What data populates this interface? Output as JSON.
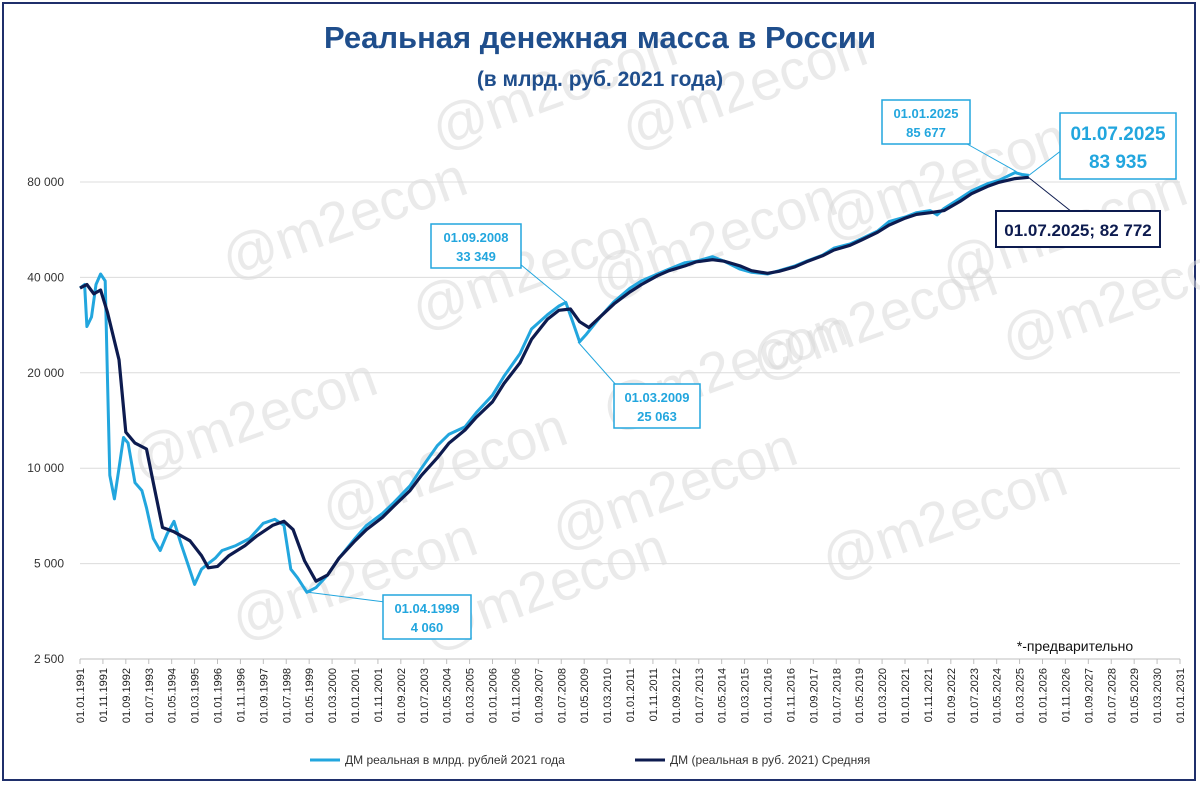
{
  "chart_data": {
    "type": "line",
    "title": "Реальная денежная масса в России",
    "subtitle": "(в млрд. руб. 2021 года)",
    "y_scale": "log",
    "ylim": [
      2500,
      95000
    ],
    "y_ticks": [
      2500,
      5000,
      10000,
      20000,
      40000,
      80000
    ],
    "y_tick_labels": [
      "2 500",
      "5 000",
      "10 000",
      "20 000",
      "40 000",
      "80 000"
    ],
    "x_tick_labels": [
      "01.01.1991",
      "01.11.1991",
      "01.09.1992",
      "01.07.1993",
      "01.05.1994",
      "01.03.1995",
      "01.01.1996",
      "01.11.1996",
      "01.09.1997",
      "01.07.1998",
      "01.05.1999",
      "01.03.2000",
      "01.01.2001",
      "01.11.2001",
      "01.09.2002",
      "01.07.2003",
      "01.05.2004",
      "01.03.2005",
      "01.01.2006",
      "01.11.2006",
      "01.09.2007",
      "01.07.2008",
      "01.05.2009",
      "01.03.2010",
      "01.01.2011",
      "01.11.2011",
      "01.09.2012",
      "01.07.2013",
      "01.05.2014",
      "01.03.2015",
      "01.01.2016",
      "01.11.2016",
      "01.09.2017",
      "01.07.2018",
      "01.05.2019",
      "01.03.2020",
      "01.01.2021",
      "01.11.2021",
      "01.09.2022",
      "01.07.2023",
      "01.05.2024",
      "01.03.2025",
      "01.01.2026",
      "01.11.2026",
      "01.09.2027",
      "01.07.2028",
      "01.05.2029",
      "01.03.2030",
      "01.01.2031"
    ],
    "x_range": [
      "1991-01",
      "2031-01"
    ],
    "grid": "horizontal",
    "legend_position": "bottom",
    "series": [
      {
        "name": "ДМ реальная в млрд. рублей 2021 года",
        "color": "#22a6de",
        "points": [
          [
            "1991-01",
            37000
          ],
          [
            "1991-03",
            38000
          ],
          [
            "1991-04",
            28000
          ],
          [
            "1991-06",
            30000
          ],
          [
            "1991-08",
            38000
          ],
          [
            "1991-10",
            41000
          ],
          [
            "1991-12",
            39000
          ],
          [
            "1992-01",
            19000
          ],
          [
            "1992-02",
            9500
          ],
          [
            "1992-04",
            8000
          ],
          [
            "1992-06",
            10000
          ],
          [
            "1992-08",
            12500
          ],
          [
            "1992-10",
            12000
          ],
          [
            "1993-01",
            9000
          ],
          [
            "1993-04",
            8500
          ],
          [
            "1993-06",
            7500
          ],
          [
            "1993-09",
            6000
          ],
          [
            "1993-12",
            5500
          ],
          [
            "1994-03",
            6200
          ],
          [
            "1994-06",
            6800
          ],
          [
            "1994-09",
            5800
          ],
          [
            "1994-12",
            5000
          ],
          [
            "1995-03",
            4300
          ],
          [
            "1995-06",
            4800
          ],
          [
            "1995-09",
            5000
          ],
          [
            "1995-12",
            5200
          ],
          [
            "1996-03",
            5500
          ],
          [
            "1996-09",
            5700
          ],
          [
            "1997-03",
            6000
          ],
          [
            "1997-09",
            6700
          ],
          [
            "1998-02",
            6900
          ],
          [
            "1998-06",
            6600
          ],
          [
            "1998-09",
            4800
          ],
          [
            "1998-12",
            4500
          ],
          [
            "1999-04",
            4060
          ],
          [
            "1999-08",
            4200
          ],
          [
            "2000-01",
            4600
          ],
          [
            "2000-06",
            5200
          ],
          [
            "2001-01",
            6000
          ],
          [
            "2001-06",
            6600
          ],
          [
            "2002-01",
            7200
          ],
          [
            "2002-06",
            7800
          ],
          [
            "2003-01",
            8800
          ],
          [
            "2003-06",
            10000
          ],
          [
            "2004-01",
            11800
          ],
          [
            "2004-06",
            12800
          ],
          [
            "2005-01",
            13500
          ],
          [
            "2005-06",
            15000
          ],
          [
            "2006-01",
            17000
          ],
          [
            "2006-06",
            19500
          ],
          [
            "2007-01",
            23000
          ],
          [
            "2007-06",
            27500
          ],
          [
            "2008-01",
            30500
          ],
          [
            "2008-06",
            32500
          ],
          [
            "2008-09",
            33349
          ],
          [
            "2008-12",
            29000
          ],
          [
            "2009-03",
            25063
          ],
          [
            "2009-06",
            26500
          ],
          [
            "2009-12",
            30000
          ],
          [
            "2010-06",
            33500
          ],
          [
            "2011-01",
            37000
          ],
          [
            "2011-06",
            39000
          ],
          [
            "2012-01",
            41000
          ],
          [
            "2012-06",
            42500
          ],
          [
            "2013-01",
            44500
          ],
          [
            "2013-06",
            45000
          ],
          [
            "2014-01",
            46500
          ],
          [
            "2014-06",
            45000
          ],
          [
            "2015-01",
            42500
          ],
          [
            "2015-06",
            41500
          ],
          [
            "2016-01",
            41000
          ],
          [
            "2016-06",
            42000
          ],
          [
            "2017-01",
            43500
          ],
          [
            "2017-06",
            45000
          ],
          [
            "2018-01",
            47000
          ],
          [
            "2018-06",
            49500
          ],
          [
            "2019-01",
            51000
          ],
          [
            "2019-06",
            53000
          ],
          [
            "2020-01",
            56000
          ],
          [
            "2020-06",
            60000
          ],
          [
            "2021-01",
            62000
          ],
          [
            "2021-06",
            64000
          ],
          [
            "2021-12",
            65000
          ],
          [
            "2022-03",
            63000
          ],
          [
            "2022-06",
            66000
          ],
          [
            "2023-01",
            71000
          ],
          [
            "2023-06",
            75000
          ],
          [
            "2024-01",
            79000
          ],
          [
            "2024-06",
            81000
          ],
          [
            "2025-01",
            85677
          ],
          [
            "2025-04",
            84500
          ],
          [
            "2025-07",
            83935
          ]
        ]
      },
      {
        "name": "ДМ (реальная в руб. 2021) Средняя",
        "color": "#0d1b4f",
        "points": [
          [
            "1991-01",
            37000
          ],
          [
            "1991-04",
            38000
          ],
          [
            "1991-07",
            35500
          ],
          [
            "1991-10",
            36500
          ],
          [
            "1992-01",
            31000
          ],
          [
            "1992-06",
            22000
          ],
          [
            "1992-09",
            13000
          ],
          [
            "1993-01",
            12000
          ],
          [
            "1993-06",
            11500
          ],
          [
            "1993-09",
            9000
          ],
          [
            "1994-01",
            6500
          ],
          [
            "1994-06",
            6300
          ],
          [
            "1995-01",
            5900
          ],
          [
            "1995-06",
            5300
          ],
          [
            "1995-09",
            4850
          ],
          [
            "1996-01",
            4900
          ],
          [
            "1996-06",
            5300
          ],
          [
            "1997-01",
            5700
          ],
          [
            "1997-06",
            6100
          ],
          [
            "1998-01",
            6600
          ],
          [
            "1998-06",
            6800
          ],
          [
            "1998-10",
            6400
          ],
          [
            "1999-03",
            5100
          ],
          [
            "1999-08",
            4400
          ],
          [
            "2000-01",
            4600
          ],
          [
            "2000-06",
            5200
          ],
          [
            "2001-01",
            5900
          ],
          [
            "2001-06",
            6400
          ],
          [
            "2002-01",
            7000
          ],
          [
            "2002-06",
            7600
          ],
          [
            "2003-01",
            8500
          ],
          [
            "2003-06",
            9500
          ],
          [
            "2004-01",
            10800
          ],
          [
            "2004-06",
            12000
          ],
          [
            "2005-01",
            13200
          ],
          [
            "2005-06",
            14500
          ],
          [
            "2006-01",
            16200
          ],
          [
            "2006-06",
            18500
          ],
          [
            "2007-01",
            21500
          ],
          [
            "2007-06",
            25500
          ],
          [
            "2008-01",
            29500
          ],
          [
            "2008-06",
            31500
          ],
          [
            "2008-11",
            31800
          ],
          [
            "2009-03",
            29000
          ],
          [
            "2009-07",
            27800
          ],
          [
            "2010-01",
            30500
          ],
          [
            "2010-06",
            33000
          ],
          [
            "2011-01",
            36000
          ],
          [
            "2011-06",
            38000
          ],
          [
            "2012-01",
            40500
          ],
          [
            "2012-06",
            42000
          ],
          [
            "2013-01",
            43500
          ],
          [
            "2013-06",
            44800
          ],
          [
            "2014-01",
            45500
          ],
          [
            "2014-06",
            45000
          ],
          [
            "2015-01",
            43500
          ],
          [
            "2015-06",
            42000
          ],
          [
            "2016-01",
            41200
          ],
          [
            "2016-06",
            41800
          ],
          [
            "2017-01",
            43200
          ],
          [
            "2017-06",
            44800
          ],
          [
            "2018-01",
            46800
          ],
          [
            "2018-06",
            48800
          ],
          [
            "2019-01",
            50500
          ],
          [
            "2019-06",
            52500
          ],
          [
            "2020-01",
            55500
          ],
          [
            "2020-06",
            58500
          ],
          [
            "2021-01",
            61500
          ],
          [
            "2021-06",
            63200
          ],
          [
            "2021-12",
            64000
          ],
          [
            "2022-06",
            65000
          ],
          [
            "2023-01",
            69500
          ],
          [
            "2023-06",
            73500
          ],
          [
            "2024-01",
            77500
          ],
          [
            "2024-06",
            79800
          ],
          [
            "2025-01",
            82000
          ],
          [
            "2025-07",
            82772
          ]
        ]
      }
    ],
    "annotations": [
      {
        "date": "01.04.1999",
        "value": "4 060",
        "style": "light"
      },
      {
        "date": "01.09.2008",
        "value": "33 349",
        "style": "light"
      },
      {
        "date": "01.03.2009",
        "value": "25 063",
        "style": "light"
      },
      {
        "date": "01.01.2025",
        "value": "85 677",
        "style": "light"
      },
      {
        "date": "01.07.2025",
        "value": "83 935",
        "style": "light-big"
      },
      {
        "label": "01.07.2025; 82 772",
        "style": "dark"
      }
    ],
    "note": "*-предварительно",
    "watermark": "@m2econ"
  }
}
